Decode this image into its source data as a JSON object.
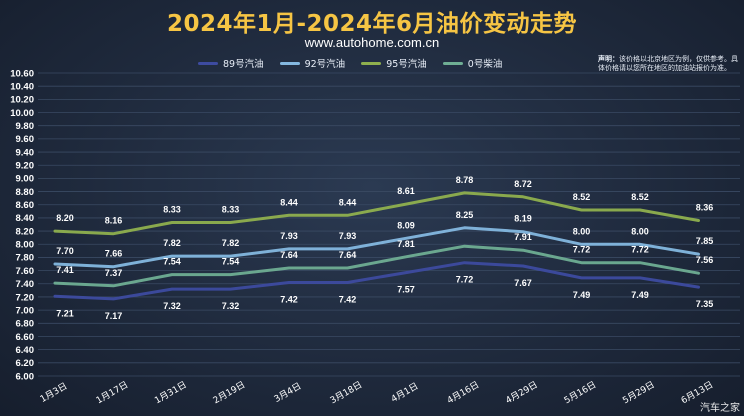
{
  "header": {
    "title": "2024年1月-2024年6月油价变动走势",
    "subtitle": "www.autohome.com.cn"
  },
  "note": {
    "label": "声明：",
    "text": "该价格以北京地区为例，仅供参考。具体价格请以您所在地区的加油站报价为准。"
  },
  "watermark": "汽车之家",
  "colors": {
    "s89": "#3d4ba0",
    "s92": "#84b8e0",
    "s95": "#8fb04e",
    "s0": "#6fae94",
    "grid": "#3a4a63"
  },
  "chart_data": {
    "type": "line",
    "title": "2024年1月-2024年6月油价变动走势",
    "categories": [
      "1月3日",
      "1月17日",
      "1月31日",
      "2月19日",
      "3月4日",
      "3月18日",
      "4月1日",
      "4月16日",
      "4月29日",
      "5月16日",
      "5月29日",
      "6月13日"
    ],
    "ylim": [
      6.0,
      10.6
    ],
    "yticks": [
      "6.00",
      "6.20",
      "6.40",
      "6.60",
      "6.80",
      "7.00",
      "7.20",
      "7.40",
      "7.60",
      "7.80",
      "8.00",
      "8.20",
      "8.40",
      "8.60",
      "8.80",
      "9.00",
      "9.20",
      "9.40",
      "9.60",
      "9.80",
      "10.00",
      "10.20",
      "10.40",
      "10.60"
    ],
    "grid": true,
    "legend_position": "top",
    "series": [
      {
        "name": "89号汽油",
        "color": "#3d4ba0",
        "values": [
          7.21,
          7.17,
          7.32,
          7.32,
          7.42,
          7.42,
          7.57,
          7.72,
          7.67,
          7.49,
          7.49,
          7.35
        ],
        "labels": [
          "7.21",
          "7.17",
          "7.32",
          "7.32",
          "7.42",
          "7.42",
          "7.57",
          "7.72",
          "7.67",
          "7.49",
          "7.49",
          "7.35"
        ]
      },
      {
        "name": "92号汽油",
        "color": "#84b8e0",
        "values": [
          7.7,
          7.66,
          7.82,
          7.82,
          7.93,
          7.93,
          8.09,
          8.25,
          8.19,
          8.0,
          8.0,
          7.85
        ],
        "labels": [
          "7.70",
          "7.66",
          "7.82",
          "7.82",
          "7.93",
          "7.93",
          "8.09",
          "8.25",
          "8.19",
          "8.00",
          "8.00",
          "7.85"
        ]
      },
      {
        "name": "95号汽油",
        "color": "#8fb04e",
        "values": [
          8.2,
          8.16,
          8.33,
          8.33,
          8.44,
          8.44,
          8.61,
          8.78,
          8.72,
          8.52,
          8.52,
          8.36
        ],
        "labels": [
          "8.20",
          "8.16",
          "8.33",
          "8.33",
          "8.44",
          "8.44",
          "8.61",
          "8.78",
          "8.72",
          "8.52",
          "8.52",
          "8.36"
        ]
      },
      {
        "name": "0号柴油",
        "color": "#6fae94",
        "values": [
          7.41,
          7.37,
          7.54,
          7.54,
          7.64,
          7.64,
          7.81,
          7.97,
          7.91,
          7.72,
          7.72,
          7.56
        ],
        "labels": [
          "7.41",
          "7.37",
          "7.54",
          "7.54",
          "7.64",
          "7.64",
          "7.81",
          "",
          "7.91",
          "7.72",
          "7.72",
          "7.56"
        ]
      }
    ]
  }
}
